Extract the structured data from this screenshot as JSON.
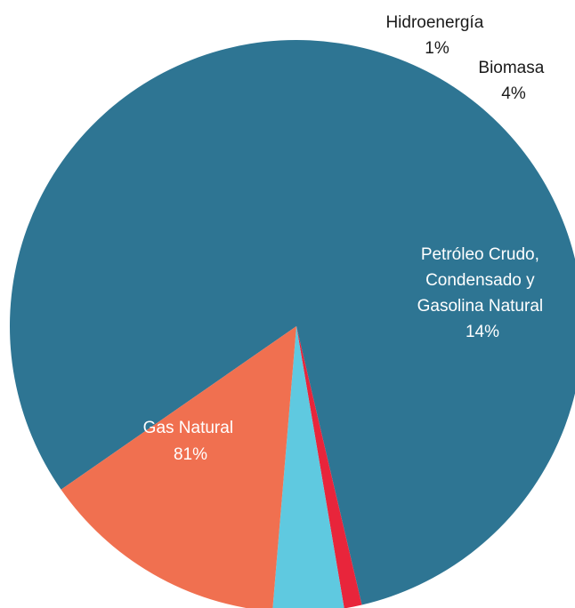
{
  "chart_data": {
    "type": "pie",
    "title": "",
    "legend": "none",
    "slices": [
      {
        "label": "Gas Natural",
        "value": 81,
        "display": "81%",
        "color": "#2e7593"
      },
      {
        "label": "Hidroenergía",
        "value": 1,
        "display": "1%",
        "color": "#e8253b"
      },
      {
        "label": "Biomasa",
        "value": 4,
        "display": "4%",
        "color": "#5fc9e0"
      },
      {
        "label_lines": [
          "Petróleo Crudo,",
          "Condensado y",
          "Gasolina Natural"
        ],
        "label": "Petróleo Crudo, Condensado y Gasolina Natural",
        "value": 14,
        "display": "14%",
        "color": "#f07050"
      }
    ]
  }
}
